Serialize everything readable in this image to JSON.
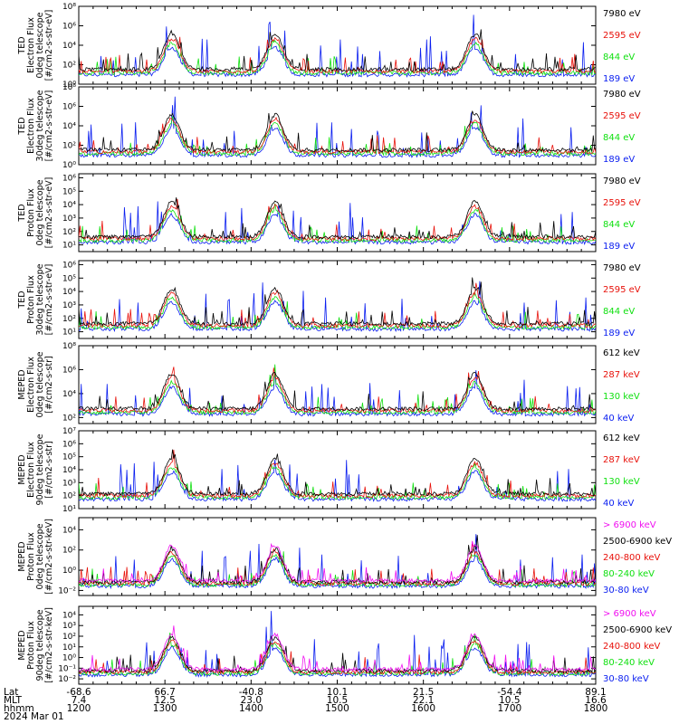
{
  "colors": {
    "black": "#000000",
    "red": "#e8120b",
    "green": "#10e010",
    "blue": "#0a1ef0",
    "magenta": "#f010f0",
    "frame": "#000000"
  },
  "chart_data": [
    {
      "type": "line",
      "title": "",
      "ylabel": [
        "TED",
        "Electron Flux",
        "0deg telescope",
        "[#/cm2-s-str-eV]"
      ],
      "yscale": "log",
      "yticks": [
        "10⁰",
        "10²",
        "10⁴",
        "10⁶",
        "10⁸"
      ],
      "yexp": [
        0,
        2,
        4,
        6,
        8
      ],
      "ylim": [
        0,
        8
      ],
      "series": [
        {
          "name": "7980 eV",
          "color": "#000000"
        },
        {
          "name": "2595 eV",
          "color": "#e8120b"
        },
        {
          "name": "844 eV",
          "color": "#10e010"
        },
        {
          "name": "189 eV",
          "color": "#0a1ef0"
        }
      ]
    },
    {
      "type": "line",
      "title": "",
      "ylabel": [
        "TED",
        "Electron Flux",
        "30deg telescope",
        "[#/cm2-s-str-eV]"
      ],
      "yscale": "log",
      "yticks": [
        "10⁰",
        "10²",
        "10⁴",
        "10⁶",
        "10⁸"
      ],
      "yexp": [
        0,
        2,
        4,
        6,
        8
      ],
      "ylim": [
        0,
        8
      ],
      "series": [
        {
          "name": "7980 eV",
          "color": "#000000"
        },
        {
          "name": "2595 eV",
          "color": "#e8120b"
        },
        {
          "name": "844 eV",
          "color": "#10e010"
        },
        {
          "name": "189 eV",
          "color": "#0a1ef0"
        }
      ]
    },
    {
      "type": "line",
      "title": "",
      "ylabel": [
        "TED",
        "Proton Flux",
        "0deg telescope",
        "[#/cm2-s-str-eV]"
      ],
      "yscale": "log",
      "yticks": [
        "10¹",
        "10²",
        "10³",
        "10⁴",
        "10⁵",
        "10⁶"
      ],
      "yexp": [
        1,
        2,
        3,
        4,
        5,
        6
      ],
      "ylim": [
        0.5,
        6.3
      ],
      "series": [
        {
          "name": "7980 eV",
          "color": "#000000"
        },
        {
          "name": "2595 eV",
          "color": "#e8120b"
        },
        {
          "name": "844 eV",
          "color": "#10e010"
        },
        {
          "name": "189 eV",
          "color": "#0a1ef0"
        }
      ]
    },
    {
      "type": "line",
      "title": "",
      "ylabel": [
        "TED",
        "Proton Flux",
        "30deg telescope",
        "[#/cm2-s-str-eV]"
      ],
      "yscale": "log",
      "yticks": [
        "10¹",
        "10²",
        "10³",
        "10⁴",
        "10⁵",
        "10⁶"
      ],
      "yexp": [
        1,
        2,
        3,
        4,
        5,
        6
      ],
      "ylim": [
        0.5,
        6.3
      ],
      "series": [
        {
          "name": "7980 eV",
          "color": "#000000"
        },
        {
          "name": "2595 eV",
          "color": "#e8120b"
        },
        {
          "name": "844 eV",
          "color": "#10e010"
        },
        {
          "name": "189 eV",
          "color": "#0a1ef0"
        }
      ]
    },
    {
      "type": "line",
      "title": "",
      "ylabel": [
        "MEPED",
        "Electron Flux",
        "0deg telescope",
        "[#/cm2-s-str]"
      ],
      "yscale": "log",
      "yticks": [
        "10²",
        "10⁴",
        "10⁶",
        "10⁸"
      ],
      "yexp": [
        2,
        4,
        6,
        8
      ],
      "ylim": [
        1.5,
        8
      ],
      "series": [
        {
          "name": "612 keV",
          "color": "#000000"
        },
        {
          "name": "287 keV",
          "color": "#e8120b"
        },
        {
          "name": "130 keV",
          "color": "#10e010"
        },
        {
          "name": "40 keV",
          "color": "#0a1ef0"
        }
      ]
    },
    {
      "type": "line",
      "title": "",
      "ylabel": [
        "MEPED",
        "Electron Flux",
        "90deg telescope",
        "[#/cm2-s-str]"
      ],
      "yscale": "log",
      "yticks": [
        "10¹",
        "10²",
        "10³",
        "10⁴",
        "10⁵",
        "10⁶",
        "10⁷"
      ],
      "yexp": [
        1,
        2,
        3,
        4,
        5,
        6,
        7
      ],
      "ylim": [
        1,
        7
      ],
      "series": [
        {
          "name": "612 keV",
          "color": "#000000"
        },
        {
          "name": "287 keV",
          "color": "#e8120b"
        },
        {
          "name": "130 keV",
          "color": "#10e010"
        },
        {
          "name": "40 keV",
          "color": "#0a1ef0"
        }
      ]
    },
    {
      "type": "line",
      "title": "",
      "ylabel": [
        "MEPED",
        "Proton Flux",
        "0deg telescope",
        "[#/cm2-s-str-keV]"
      ],
      "yscale": "log",
      "yticks": [
        "10⁻²",
        "10⁰",
        "10²",
        "10⁴"
      ],
      "yexp": [
        -2,
        0,
        2,
        4
      ],
      "ylim": [
        -2.5,
        5.2
      ],
      "series": [
        {
          "name": "> 6900 keV",
          "color": "#f010f0"
        },
        {
          "name": "2500-6900 keV",
          "color": "#000000"
        },
        {
          "name": "240-800 keV",
          "color": "#e8120b"
        },
        {
          "name": "80-240 keV",
          "color": "#10e010"
        },
        {
          "name": "30-80 keV",
          "color": "#0a1ef0"
        }
      ]
    },
    {
      "type": "line",
      "title": "",
      "ylabel": [
        "MEPED",
        "Proton Flux",
        "90deg telescope",
        "[#/cm2-s-str-keV]"
      ],
      "yscale": "log",
      "yticks": [
        "10⁻²",
        "10⁻¹",
        "10⁰",
        "10¹",
        "10²",
        "10³",
        "10⁴"
      ],
      "yexp": [
        -2,
        -1,
        0,
        1,
        2,
        3,
        4
      ],
      "ylim": [
        -2.5,
        4.8
      ],
      "series": [
        {
          "name": "> 6900 keV",
          "color": "#f010f0"
        },
        {
          "name": "2500-6900 keV",
          "color": "#000000"
        },
        {
          "name": "240-800 keV",
          "color": "#e8120b"
        },
        {
          "name": "80-240 keV",
          "color": "#10e010"
        },
        {
          "name": "30-80 keV",
          "color": "#0a1ef0"
        }
      ]
    }
  ],
  "x_axis": {
    "row_labels": [
      "Lat",
      "MLT",
      "hhmm",
      "2024 Mar 01"
    ],
    "ticks": [
      {
        "lat": "-68.6",
        "mlt": "7.4",
        "hhmm": "1200",
        "t": 0
      },
      {
        "lat": "66.7",
        "mlt": "12.5",
        "hhmm": "1300",
        "t": 1
      },
      {
        "lat": "-40.8",
        "mlt": "23.0",
        "hhmm": "1400",
        "t": 2
      },
      {
        "lat": "10.1",
        "mlt": "10.5",
        "hhmm": "1500",
        "t": 3
      },
      {
        "lat": "21.5",
        "mlt": "22.1",
        "hhmm": "1600",
        "t": 4
      },
      {
        "lat": "-54.4",
        "mlt": "10.5",
        "hhmm": "1700",
        "t": 5
      },
      {
        "lat": "89.1",
        "mlt": "16.6",
        "hhmm": "1800",
        "t": 6
      }
    ],
    "xlim": [
      0,
      6
    ]
  }
}
